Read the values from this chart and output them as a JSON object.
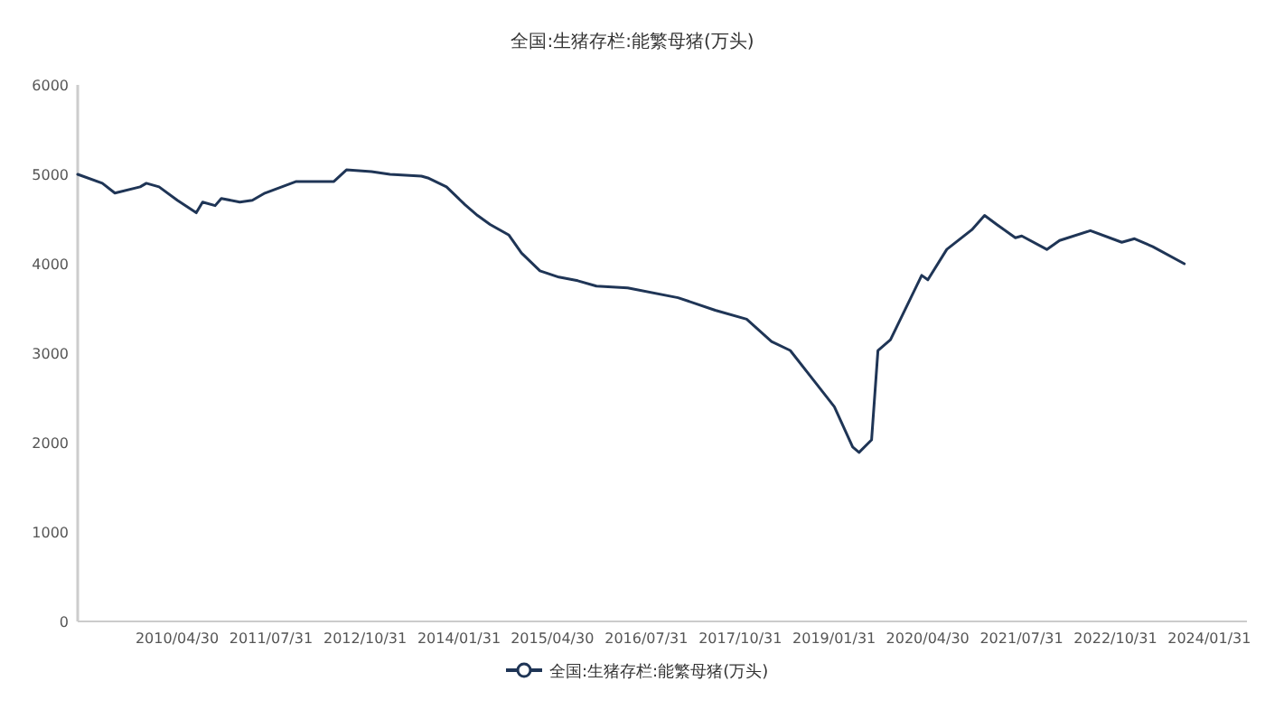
{
  "chart_data": {
    "type": "line",
    "title": "全国:生猪存栏:能繁母猪(万头)",
    "legend": "bottom",
    "marker": "none",
    "grid": false,
    "xlim": [
      "2009-01",
      "2024-08"
    ],
    "xticks": [
      {
        "value": "2010-04-30",
        "label": "2010/04/30"
      },
      {
        "value": "2011-07-31",
        "label": "2011/07/31"
      },
      {
        "value": "2012-10-31",
        "label": "2012/10/31"
      },
      {
        "value": "2014-01-31",
        "label": "2014/01/31"
      },
      {
        "value": "2015-04-30",
        "label": "2015/04/30"
      },
      {
        "value": "2016-07-31",
        "label": "2016/07/31"
      },
      {
        "value": "2017-10-31",
        "label": "2017/10/31"
      },
      {
        "value": "2019-01-31",
        "label": "2019/01/31"
      },
      {
        "value": "2020-04-30",
        "label": "2020/04/30"
      },
      {
        "value": "2021-07-31",
        "label": "2021/07/31"
      },
      {
        "value": "2022-10-31",
        "label": "2022/10/31"
      },
      {
        "value": "2024-01-31",
        "label": "2024/01/31"
      }
    ],
    "ylim": [
      0,
      6000
    ],
    "yticks": [
      0,
      1000,
      2000,
      3000,
      4000,
      5000,
      6000
    ],
    "series": [
      {
        "name": "全国:生猪存栏:能繁母猪(万头)",
        "color": "#1f3556",
        "x": [
          "2009-01",
          "2009-05",
          "2009-07",
          "2009-11",
          "2009-12",
          "2010-02",
          "2010-05",
          "2010-08",
          "2010-09",
          "2010-11",
          "2010-12",
          "2011-03",
          "2011-05",
          "2011-07",
          "2011-12",
          "2012-06",
          "2012-08",
          "2012-12",
          "2013-03",
          "2013-08",
          "2013-09",
          "2013-12",
          "2014-03",
          "2014-05",
          "2014-07",
          "2014-10",
          "2014-12",
          "2015-03",
          "2015-06",
          "2015-09",
          "2015-12",
          "2016-05",
          "2017-01",
          "2017-07",
          "2017-12",
          "2018-04",
          "2018-07",
          "2018-11",
          "2019-02",
          "2019-05",
          "2019-06",
          "2019-08",
          "2019-09",
          "2019-11",
          "2020-04",
          "2020-05",
          "2020-08",
          "2020-12",
          "2021-02",
          "2021-04",
          "2021-07",
          "2021-08",
          "2021-12",
          "2022-02",
          "2022-07",
          "2022-12",
          "2023-02",
          "2023-05",
          "2023-10"
        ],
        "values": [
          5000,
          4900,
          4790,
          4860,
          4900,
          4860,
          4710,
          4570,
          4690,
          4650,
          4730,
          4690,
          4710,
          4790,
          4920,
          4920,
          5050,
          5030,
          5000,
          4980,
          4960,
          4860,
          4660,
          4540,
          4440,
          4320,
          4120,
          3920,
          3850,
          3810,
          3750,
          3730,
          3620,
          3480,
          3380,
          3130,
          3030,
          2670,
          2400,
          1950,
          1890,
          2030,
          3030,
          3150,
          3870,
          3820,
          4160,
          4380,
          4540,
          4440,
          4290,
          4310,
          4160,
          4260,
          4370,
          4240,
          4280,
          4190,
          4000
        ]
      }
    ]
  }
}
